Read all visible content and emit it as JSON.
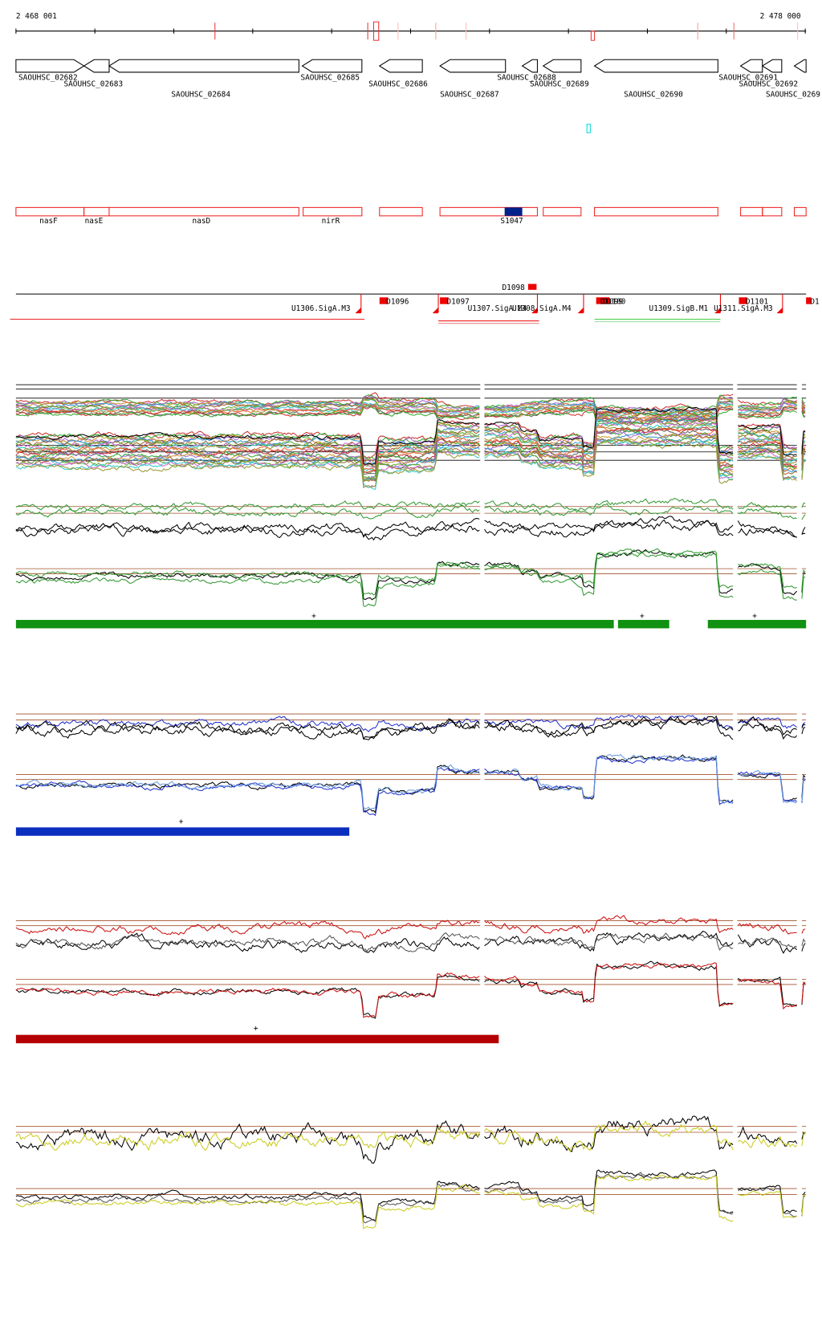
{
  "ruler": {
    "start": "2 468 001",
    "end": "2 478 000"
  },
  "genes": [
    "SAOUHSC_02682",
    "SAOUHSC_02683",
    "SAOUHSC_02684",
    "SAOUHSC_02685",
    "SAOUHSC_02686",
    "SAOUHSC_02687",
    "SAOUHSC_02688",
    "SAOUHSC_02689",
    "SAOUHSC_02690",
    "SAOUHSC_02691",
    "SAOUHSC_02692",
    "SAOUHSC_0269"
  ],
  "operons": [
    "nasF",
    "nasE",
    "nasD",
    "nirR",
    "S1047"
  ],
  "transcripts": [
    "D1098",
    "U1306.SigA.M3",
    "D1096",
    "D1097",
    "U1307.SigA.M4",
    "U1308.SigA.M4",
    "D1099",
    "D1100",
    "U1309.SigB.M1",
    "U1311.SigA.M3",
    "D1101",
    "D1"
  ],
  "strands": [
    "+",
    "+",
    "+",
    "+",
    "+"
  ]
}
